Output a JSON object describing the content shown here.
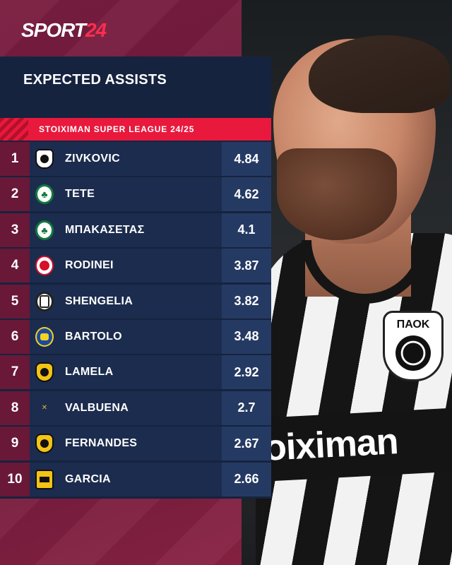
{
  "brand": {
    "logo_main": "SPORT",
    "logo_accent": "24"
  },
  "title": "EXPECTED ASSISTS",
  "league": "STOIXIMAN SUPER LEAGUE 24/25",
  "rows": [
    {
      "rank": "1",
      "name": "ZIVKOVIC",
      "value": "4.84",
      "crest": "paok-crest-icon"
    },
    {
      "rank": "2",
      "name": "TETE",
      "value": "4.62",
      "crest": "panathinaikos-crest-icon"
    },
    {
      "rank": "3",
      "name": "ΜΠΑΚΑΣΕΤΑΣ",
      "value": "4.1",
      "crest": "panathinaikos-crest-icon"
    },
    {
      "rank": "4",
      "name": "RODINEI",
      "value": "3.87",
      "crest": "olympiacos-crest-icon"
    },
    {
      "rank": "5",
      "name": "SHENGELIA",
      "value": "3.82",
      "crest": "ofi-crest-icon"
    },
    {
      "rank": "6",
      "name": "BARTOLO",
      "value": "3.48",
      "crest": "asteras-crest-icon"
    },
    {
      "rank": "7",
      "name": "LAMELA",
      "value": "2.92",
      "crest": "aek-crest-icon"
    },
    {
      "rank": "8",
      "name": "VALBUENA",
      "value": "2.7",
      "crest": "athens-kallithea-crest-icon"
    },
    {
      "rank": "9",
      "name": "FERNANDES",
      "value": "2.67",
      "crest": "aek-crest-icon"
    },
    {
      "rank": "10",
      "name": "GARCIA",
      "value": "2.66",
      "crest": "aris-crest-icon"
    }
  ],
  "photo": {
    "sponsor_text": "oiximan",
    "badge_text": "ΠΑΟΚ"
  },
  "colors": {
    "background": "#6e1a3a",
    "panel": "#15233f",
    "accent": "#e8193c"
  }
}
